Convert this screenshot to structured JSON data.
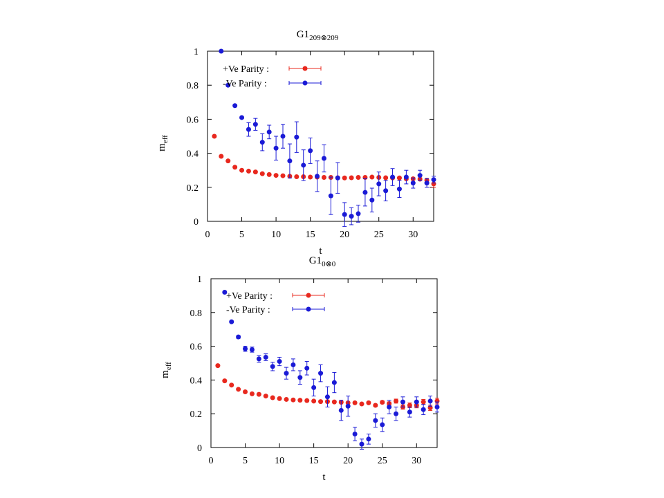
{
  "chart_data": [
    {
      "type": "scatter",
      "title": "G1",
      "title_subscript": "209⊗209",
      "xlabel": "t",
      "ylabel": "m",
      "ylabel_subscript": "eff",
      "xlim": [
        0,
        33
      ],
      "ylim": [
        0,
        1
      ],
      "xticks": [
        "0",
        "5",
        "10",
        "15",
        "20",
        "25",
        "30"
      ],
      "yticks": [
        "0",
        "0.2",
        "0.4",
        "0.6",
        "0.8",
        "1"
      ],
      "legend_position": "top-left",
      "grid": false,
      "series": [
        {
          "name": "+Ve Parity :",
          "color": "#e8281e",
          "x": [
            1,
            2,
            3,
            4,
            5,
            6,
            7,
            8,
            9,
            10,
            11,
            12,
            13,
            14,
            15,
            16,
            17,
            18,
            19,
            20,
            21,
            22,
            23,
            24,
            25,
            26,
            27,
            28,
            29,
            30,
            31,
            32,
            33
          ],
          "y": [
            0.5,
            0.382,
            0.355,
            0.318,
            0.3,
            0.295,
            0.29,
            0.28,
            0.275,
            0.27,
            0.268,
            0.265,
            0.262,
            0.262,
            0.26,
            0.26,
            0.258,
            0.258,
            0.256,
            0.255,
            0.256,
            0.258,
            0.258,
            0.26,
            0.258,
            0.256,
            0.255,
            0.255,
            0.25,
            0.25,
            0.248,
            0.242,
            0.22
          ],
          "err": [
            0.003,
            0.003,
            0.003,
            0.003,
            0.003,
            0.003,
            0.003,
            0.003,
            0.003,
            0.003,
            0.003,
            0.003,
            0.003,
            0.003,
            0.003,
            0.003,
            0.003,
            0.003,
            0.003,
            0.003,
            0.003,
            0.003,
            0.003,
            0.003,
            0.003,
            0.003,
            0.003,
            0.005,
            0.006,
            0.007,
            0.008,
            0.01,
            0.02
          ]
        },
        {
          "name": "-Ve Parity :",
          "color": "#1a1ad6",
          "x": [
            2,
            3,
            4,
            5,
            6,
            7,
            8,
            9,
            10,
            11,
            12,
            13,
            14,
            15,
            16,
            17,
            18,
            19,
            20,
            21,
            22,
            23,
            24,
            25,
            26,
            27,
            28,
            29,
            30,
            31,
            32,
            33
          ],
          "y": [
            1.0,
            0.8,
            0.68,
            0.61,
            0.54,
            0.57,
            0.465,
            0.525,
            0.43,
            0.5,
            0.355,
            0.495,
            0.33,
            0.415,
            0.265,
            0.37,
            0.15,
            0.255,
            0.04,
            0.03,
            0.045,
            0.17,
            0.125,
            0.22,
            0.18,
            0.26,
            0.19,
            0.26,
            0.225,
            0.27,
            0.225,
            0.245
          ],
          "err": [
            0.005,
            0.005,
            0.005,
            0.005,
            0.04,
            0.035,
            0.05,
            0.04,
            0.07,
            0.07,
            0.1,
            0.09,
            0.09,
            0.075,
            0.09,
            0.08,
            0.11,
            0.09,
            0.07,
            0.05,
            0.05,
            0.08,
            0.07,
            0.07,
            0.06,
            0.05,
            0.05,
            0.04,
            0.03,
            0.03,
            0.025,
            0.02
          ]
        }
      ]
    },
    {
      "type": "scatter",
      "title": "G1",
      "title_subscript": "0⊗0",
      "xlabel": "t",
      "ylabel": "m",
      "ylabel_subscript": "eff",
      "xlim": [
        0,
        33
      ],
      "ylim": [
        0,
        1
      ],
      "xticks": [
        "0",
        "5",
        "10",
        "15",
        "20",
        "25",
        "30"
      ],
      "yticks": [
        "0",
        "0.2",
        "0.4",
        "0.6",
        "0.8",
        "1"
      ],
      "legend_position": "top-left",
      "grid": false,
      "series": [
        {
          "name": "+Ve Parity :",
          "color": "#e8281e",
          "x": [
            1,
            2,
            3,
            4,
            5,
            6,
            7,
            8,
            9,
            10,
            11,
            12,
            13,
            14,
            15,
            16,
            17,
            18,
            19,
            20,
            21,
            22,
            23,
            24,
            25,
            26,
            27,
            28,
            29,
            30,
            31,
            32,
            33
          ],
          "y": [
            0.485,
            0.395,
            0.37,
            0.345,
            0.33,
            0.318,
            0.315,
            0.305,
            0.295,
            0.29,
            0.285,
            0.282,
            0.28,
            0.278,
            0.275,
            0.272,
            0.272,
            0.27,
            0.268,
            0.265,
            0.265,
            0.258,
            0.265,
            0.25,
            0.268,
            0.26,
            0.275,
            0.24,
            0.25,
            0.25,
            0.27,
            0.235,
            0.275
          ],
          "err": [
            0.003,
            0.003,
            0.003,
            0.003,
            0.003,
            0.003,
            0.003,
            0.003,
            0.003,
            0.003,
            0.003,
            0.003,
            0.003,
            0.003,
            0.003,
            0.003,
            0.003,
            0.003,
            0.003,
            0.003,
            0.005,
            0.005,
            0.006,
            0.007,
            0.008,
            0.01,
            0.012,
            0.013,
            0.014,
            0.015,
            0.015,
            0.016,
            0.017
          ]
        },
        {
          "name": "-Ve Parity :",
          "color": "#1a1ad6",
          "x": [
            2,
            3,
            4,
            5,
            6,
            7,
            8,
            9,
            10,
            11,
            12,
            13,
            14,
            15,
            16,
            17,
            18,
            19,
            20,
            21,
            22,
            23,
            24,
            25,
            26,
            27,
            28,
            29,
            30,
            31,
            32,
            33
          ],
          "y": [
            0.92,
            0.745,
            0.655,
            0.585,
            0.58,
            0.525,
            0.535,
            0.48,
            0.51,
            0.44,
            0.49,
            0.415,
            0.47,
            0.355,
            0.44,
            0.3,
            0.385,
            0.22,
            0.245,
            0.08,
            0.02,
            0.05,
            0.16,
            0.135,
            0.24,
            0.2,
            0.27,
            0.21,
            0.27,
            0.225,
            0.275,
            0.24
          ],
          "err": [
            0.005,
            0.005,
            0.008,
            0.015,
            0.015,
            0.02,
            0.02,
            0.025,
            0.025,
            0.035,
            0.035,
            0.04,
            0.04,
            0.05,
            0.05,
            0.06,
            0.06,
            0.06,
            0.06,
            0.04,
            0.03,
            0.03,
            0.04,
            0.04,
            0.04,
            0.04,
            0.03,
            0.03,
            0.03,
            0.03,
            0.03,
            0.03
          ]
        }
      ]
    }
  ]
}
